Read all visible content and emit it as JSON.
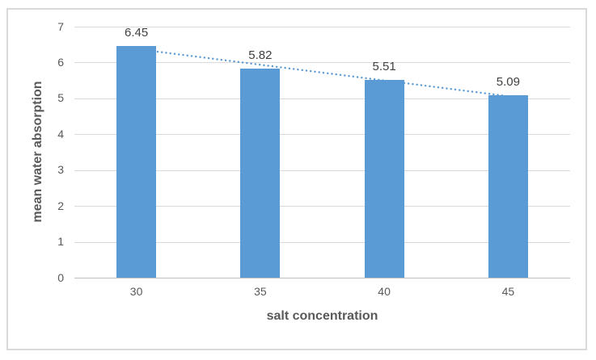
{
  "chart_data": {
    "type": "bar",
    "categories": [
      "30",
      "35",
      "40",
      "45"
    ],
    "values": [
      6.45,
      5.82,
      5.51,
      5.09
    ],
    "data_labels": [
      "6.45",
      "5.82",
      "5.51",
      "5.09"
    ],
    "title": "",
    "xlabel": "salt concentration",
    "ylabel": "mean water absorption",
    "yticks": [
      0,
      1,
      2,
      3,
      4,
      5,
      6,
      7
    ],
    "ylim": [
      0,
      7
    ],
    "grid": true,
    "legend": false,
    "trendline": {
      "type": "linear",
      "style": "dotted"
    },
    "colors": {
      "bar": "#5B9BD5",
      "trendline": "#5B9BD5",
      "gridline": "#D9D9D9",
      "axis_line": "#BFBFBF",
      "tick_text": "#595959",
      "data_label_text": "#404040",
      "axis_title_text": "#595959",
      "frame_border": "#D9D9D9",
      "background": "#FFFFFF"
    }
  }
}
